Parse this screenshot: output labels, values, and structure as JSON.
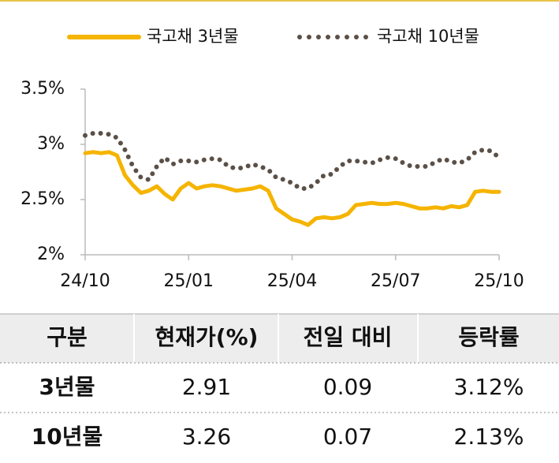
{
  "chart_data": {
    "type": "line",
    "x": [
      0,
      1,
      2,
      3,
      4,
      5,
      6,
      7,
      8,
      9,
      10,
      11,
      12,
      13,
      14,
      15,
      16,
      17,
      18,
      19,
      20,
      21,
      22,
      23,
      24,
      25,
      26,
      27,
      28,
      29,
      30,
      31,
      32,
      33,
      34,
      35,
      36,
      37,
      38,
      39,
      40,
      41,
      42,
      43,
      44,
      45,
      46,
      47,
      48,
      49,
      50,
      51,
      52
    ],
    "xlim": [
      0,
      52
    ],
    "xticks": [
      {
        "value": 0,
        "label": "24/10"
      },
      {
        "value": 13,
        "label": "25/01"
      },
      {
        "value": 26,
        "label": "25/04"
      },
      {
        "value": 39,
        "label": "25/07"
      },
      {
        "value": 52,
        "label": "25/10"
      }
    ],
    "ylim": [
      2,
      3.5
    ],
    "yticks": [
      {
        "value": 2,
        "label": "2%"
      },
      {
        "value": 2.5,
        "label": "2.5%"
      },
      {
        "value": 3,
        "label": "3%"
      },
      {
        "value": 3.5,
        "label": "3.5%"
      }
    ],
    "grid": false,
    "legend": "top",
    "series": [
      {
        "name": "국고채 3년물",
        "color": "#f5b400",
        "style": "solid",
        "values": [
          2.92,
          2.93,
          2.92,
          2.93,
          2.9,
          2.72,
          2.63,
          2.56,
          2.58,
          2.62,
          2.55,
          2.5,
          2.6,
          2.65,
          2.6,
          2.62,
          2.63,
          2.62,
          2.6,
          2.58,
          2.59,
          2.6,
          2.62,
          2.58,
          2.42,
          2.37,
          2.32,
          2.3,
          2.27,
          2.33,
          2.34,
          2.33,
          2.34,
          2.37,
          2.45,
          2.46,
          2.47,
          2.46,
          2.46,
          2.47,
          2.46,
          2.44,
          2.42,
          2.42,
          2.43,
          2.42,
          2.44,
          2.43,
          2.45,
          2.57,
          2.58,
          2.57,
          2.57
        ]
      },
      {
        "name": "국고채 10년물",
        "color": "#5b5047",
        "style": "dotted",
        "values": [
          3.08,
          3.1,
          3.1,
          3.09,
          3.06,
          2.95,
          2.8,
          2.7,
          2.68,
          2.8,
          2.88,
          2.82,
          2.85,
          2.85,
          2.84,
          2.86,
          2.87,
          2.86,
          2.8,
          2.78,
          2.79,
          2.82,
          2.8,
          2.77,
          2.7,
          2.68,
          2.65,
          2.6,
          2.6,
          2.65,
          2.72,
          2.73,
          2.8,
          2.85,
          2.85,
          2.84,
          2.83,
          2.86,
          2.88,
          2.87,
          2.83,
          2.8,
          2.8,
          2.8,
          2.84,
          2.87,
          2.84,
          2.83,
          2.86,
          2.93,
          2.95,
          2.94,
          2.88
        ]
      }
    ]
  },
  "table": {
    "header": [
      "구분",
      "현재가(%)",
      "전일 대비",
      "등락률"
    ],
    "rows": [
      [
        "3년물",
        "2.91",
        "0.09",
        "3.12%"
      ],
      [
        "10년물",
        "3.26",
        "0.07",
        "2.13%"
      ]
    ]
  }
}
